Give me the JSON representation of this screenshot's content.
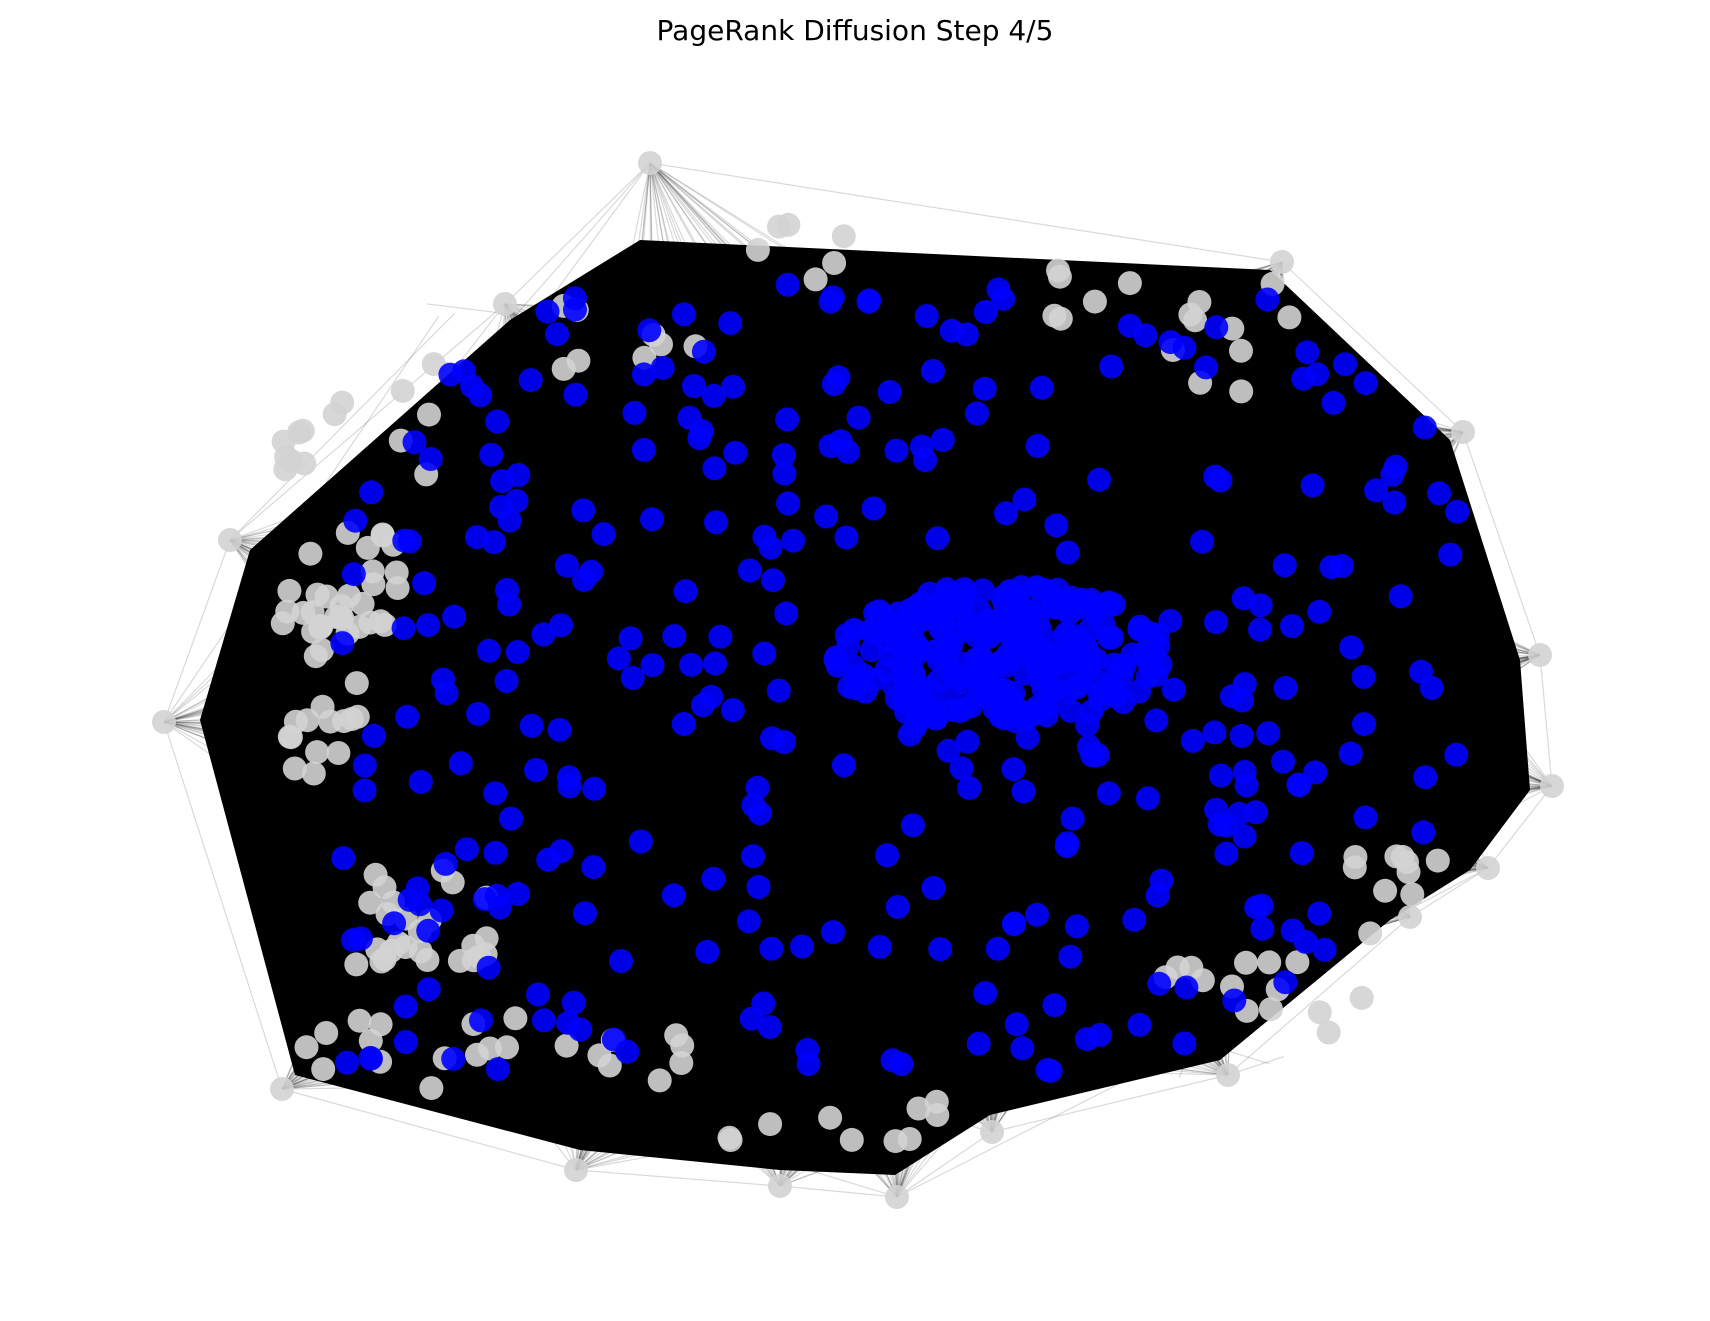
{
  "figure": {
    "title": "PageRank Diffusion Step 4/5"
  },
  "colors": {
    "background": "#ffffff",
    "edge": "#000000",
    "visited_node": "#0000ff",
    "unvisited_node": "#d3d3d3"
  },
  "legend": {
    "visited_node": "blue",
    "unvisited_node": "lightgray"
  },
  "graph": {
    "layout": "force-directed",
    "step": 4,
    "total_steps": 5,
    "edge_opacity": 0.15
  }
}
